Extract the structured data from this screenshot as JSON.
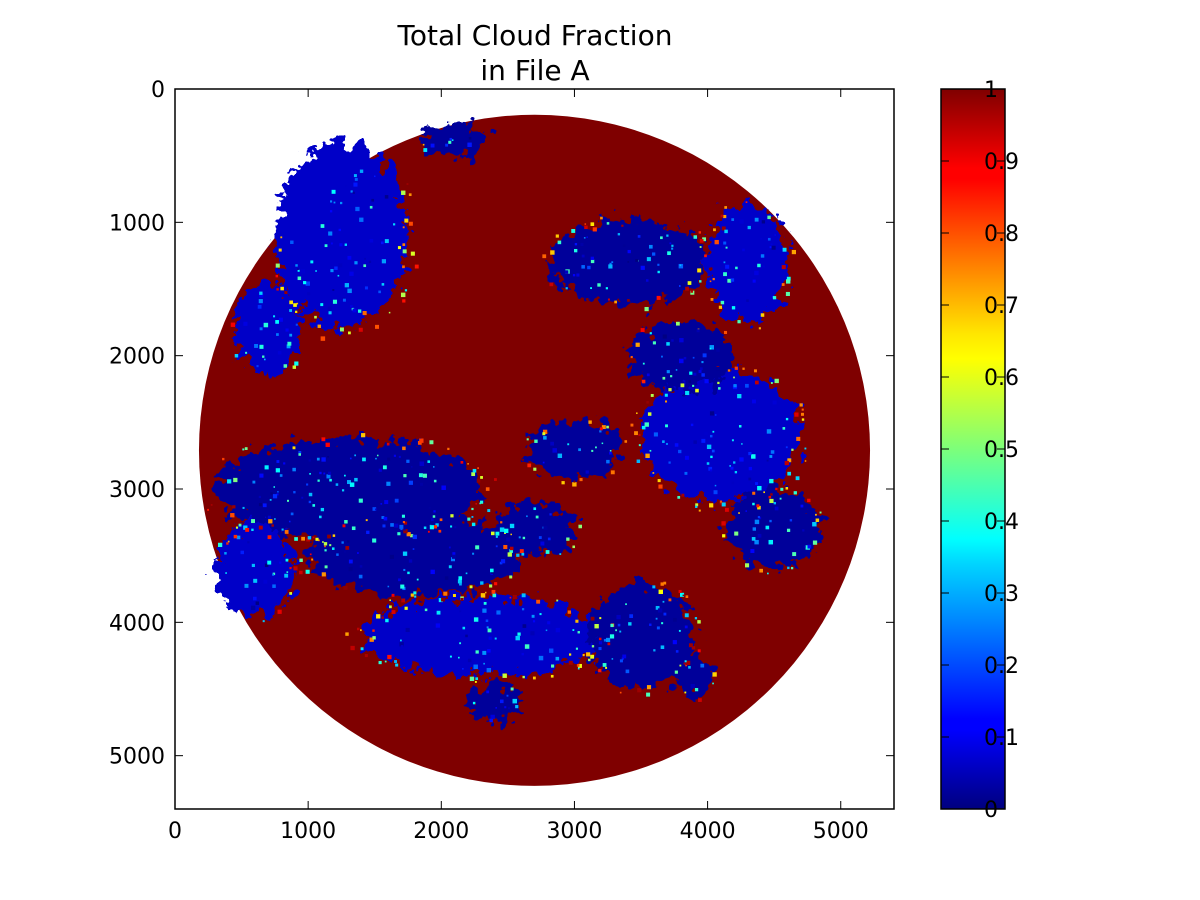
{
  "chart_data": {
    "type": "heatmap",
    "title": [
      "Total Cloud Fraction",
      "in File A"
    ],
    "xlabel": "",
    "ylabel": "",
    "xlim": [
      0,
      5400
    ],
    "ylim": [
      5400,
      0
    ],
    "x_ticks": [
      0,
      1000,
      2000,
      3000,
      4000,
      5000
    ],
    "y_ticks": [
      0,
      1000,
      2000,
      3000,
      4000,
      5000
    ],
    "grid": false,
    "disk": {
      "center_x": 2700,
      "center_y": 2710,
      "radius": 2520
    },
    "colormap": "jet",
    "colorbar": {
      "range": [
        0,
        1
      ],
      "ticks": [
        "0",
        "0.1",
        "0.2",
        "0.3",
        "0.4",
        "0.5",
        "0.6",
        "0.7",
        "0.8",
        "0.9",
        "1"
      ]
    },
    "dominant_value": 1.0,
    "clear_regions": [
      {
        "x": 1250,
        "y": 1100,
        "rx": 500,
        "ry": 700
      },
      {
        "x": 2100,
        "y": 380,
        "rx": 250,
        "ry": 120
      },
      {
        "x": 3400,
        "y": 1300,
        "rx": 600,
        "ry": 320
      },
      {
        "x": 4300,
        "y": 1300,
        "rx": 300,
        "ry": 450
      },
      {
        "x": 1300,
        "y": 3000,
        "rx": 1000,
        "ry": 380
      },
      {
        "x": 1800,
        "y": 3500,
        "rx": 800,
        "ry": 300
      },
      {
        "x": 2300,
        "y": 4100,
        "rx": 900,
        "ry": 300
      },
      {
        "x": 3500,
        "y": 4100,
        "rx": 400,
        "ry": 400
      },
      {
        "x": 3000,
        "y": 2700,
        "rx": 350,
        "ry": 220
      },
      {
        "x": 4100,
        "y": 2600,
        "rx": 600,
        "ry": 500
      },
      {
        "x": 4500,
        "y": 3300,
        "rx": 350,
        "ry": 300
      },
      {
        "x": 3900,
        "y": 4400,
        "rx": 150,
        "ry": 150
      },
      {
        "x": 700,
        "y": 1800,
        "rx": 250,
        "ry": 350
      },
      {
        "x": 2700,
        "y": 3300,
        "rx": 300,
        "ry": 200
      },
      {
        "x": 3800,
        "y": 2000,
        "rx": 400,
        "ry": 250
      },
      {
        "x": 600,
        "y": 3600,
        "rx": 300,
        "ry": 350
      },
      {
        "x": 2400,
        "y": 4600,
        "rx": 200,
        "ry": 150
      }
    ]
  }
}
